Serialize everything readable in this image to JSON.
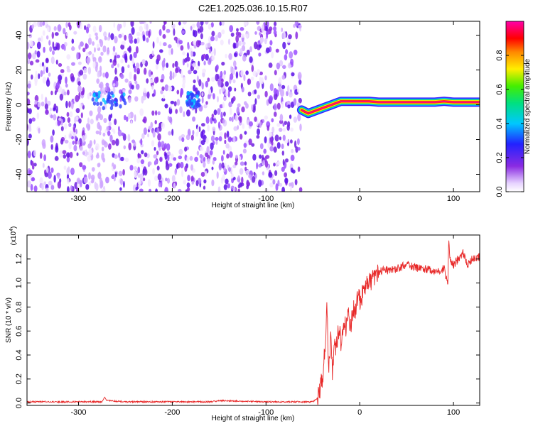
{
  "figure_title": "C2E1.2025.036.10.15.R07",
  "chart_data": [
    {
      "type": "heatmap",
      "title": "C2E1.2025.036.10.15.R07",
      "xlabel": "Height of straight line (km)",
      "ylabel": "Frequency (Hz)",
      "xlim": [
        -355,
        128
      ],
      "ylim": [
        -50,
        48
      ],
      "x_ticks": [
        -300,
        -200,
        -100,
        0,
        100
      ],
      "y_ticks": [
        -40,
        -20,
        0,
        20,
        40
      ],
      "x_tick_labels": [
        "-300",
        "-200",
        "-100",
        "0",
        "100"
      ],
      "y_tick_labels": [
        "-40",
        "-20",
        "0",
        "20",
        "40"
      ],
      "colorbar": {
        "label": "Normalized spectral amplitude",
        "range": [
          0,
          1
        ],
        "ticks": [
          0.0,
          0.2,
          0.4,
          0.6,
          0.8
        ],
        "tick_labels": [
          "0.0",
          "0.2",
          "0.4",
          "0.6",
          "0.8"
        ],
        "colormap": "rainbow (white-purple-blue-cyan-green-yellow-red-magenta)"
      },
      "noise_region_x": [
        -355,
        -63
      ],
      "signal_trace": {
        "x": [
          -62,
          -55,
          -50,
          -45,
          -40,
          -35,
          -30,
          -25,
          -20,
          -15,
          -10,
          -5,
          0,
          10,
          20,
          40,
          60,
          80,
          90,
          100,
          110,
          128
        ],
        "frequency": [
          -3,
          -5,
          -4,
          -3,
          -2,
          -1,
          0,
          1,
          2,
          2,
          2,
          2,
          2,
          2,
          1.5,
          1.5,
          1.5,
          1.5,
          2,
          1.5,
          1.5,
          1.5
        ]
      }
    },
    {
      "type": "line",
      "xlabel": "Height of straight line (km)",
      "ylabel": "SNR (10 * v/v)",
      "scale_label": "(x10",
      "scale_exponent": "4",
      "xlim": [
        -355,
        128
      ],
      "ylim": [
        -0.02,
        1.4
      ],
      "x_ticks": [
        -300,
        -200,
        -100,
        0,
        100
      ],
      "y_ticks": [
        0.0,
        0.2,
        0.4,
        0.6,
        0.8,
        1.0,
        1.2
      ],
      "x_tick_labels": [
        "-300",
        "-200",
        "-100",
        "0",
        "100"
      ],
      "y_tick_labels": [
        "0.0",
        "0.2",
        "0.4",
        "0.6",
        "0.8",
        "1.0",
        "1.2"
      ],
      "series_color": "#e82a2a",
      "x": [
        -355,
        -300,
        -275,
        -272,
        -270,
        -250,
        -200,
        -160,
        -150,
        -100,
        -50,
        -44,
        -40,
        -37,
        -35,
        -33,
        -31,
        -29,
        -27,
        -25,
        -22,
        -20,
        -17,
        -15,
        -12,
        -10,
        -7,
        -5,
        -2,
        0,
        5,
        10,
        15,
        20,
        25,
        30,
        40,
        50,
        60,
        70,
        80,
        90,
        94,
        95,
        96,
        100,
        105,
        110,
        115,
        120,
        128
      ],
      "y": [
        0.01,
        0.01,
        0.01,
        0.05,
        0.02,
        0.01,
        0.01,
        0.01,
        0.02,
        0.01,
        0.01,
        0.05,
        0.2,
        0.45,
        0.8,
        0.3,
        0.55,
        0.25,
        0.5,
        0.45,
        0.65,
        0.5,
        0.7,
        0.62,
        0.75,
        0.6,
        0.82,
        0.72,
        0.88,
        0.85,
        0.95,
        1.0,
        1.05,
        1.08,
        1.12,
        1.1,
        1.12,
        1.15,
        1.13,
        1.12,
        1.1,
        1.12,
        1.0,
        1.4,
        1.2,
        1.15,
        1.2,
        1.25,
        1.15,
        1.2,
        1.22
      ]
    }
  ]
}
